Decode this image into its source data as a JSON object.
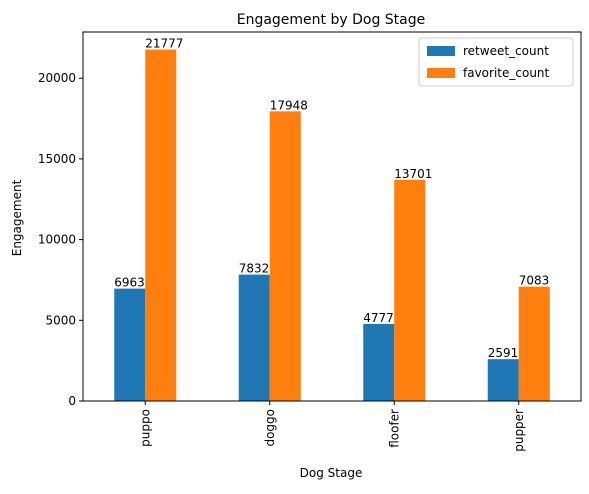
{
  "chart_data": {
    "type": "bar",
    "title": "Engagement by Dog Stage",
    "xlabel": "Dog Stage",
    "ylabel": "Engagement",
    "categories": [
      "puppo",
      "doggo",
      "floofer",
      "pupper"
    ],
    "series": [
      {
        "name": "retweet_count",
        "values": [
          6963,
          7832,
          4777,
          2591
        ],
        "color": "#1f77b4"
      },
      {
        "name": "favorite_count",
        "values": [
          21777,
          17948,
          13701,
          7083
        ],
        "color": "#ff7f0e"
      }
    ],
    "ylim": [
      0,
      22864
    ],
    "yticks": [
      0,
      5000,
      10000,
      15000,
      20000
    ],
    "legend_position": "top-right",
    "grid": false
  }
}
